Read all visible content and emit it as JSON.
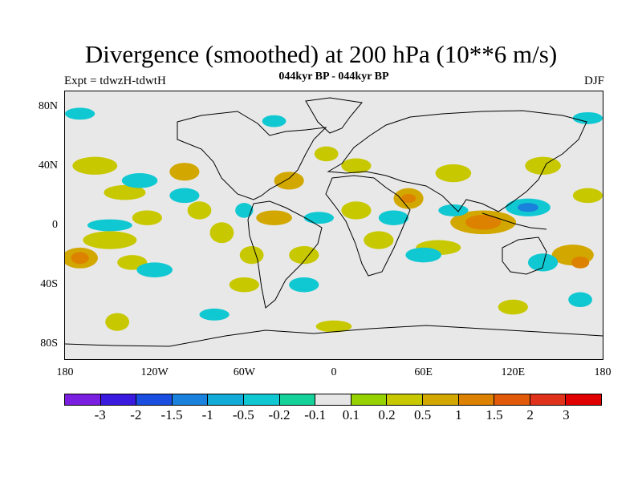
{
  "title": "Divergence (smoothed) at 200 hPa (10**6 m/s)",
  "subtitle_left": "Expt = tdwzH-tdwtH",
  "subtitle_center": "044kyr BP - 044kyr BP",
  "subtitle_right": "DJF",
  "map": {
    "projection": "cylindrical-equidistant",
    "lon_range": [
      -180,
      180
    ],
    "lat_range": [
      -90,
      90
    ],
    "background_color": "#e8e8e8",
    "coastline_color": "#000000",
    "lat_ticks": [
      {
        "value": 80,
        "label": "80N"
      },
      {
        "value": 40,
        "label": "40N"
      },
      {
        "value": 0,
        "label": "0"
      },
      {
        "value": -40,
        "label": "40S"
      },
      {
        "value": -80,
        "label": "80S"
      }
    ],
    "lon_ticks": [
      {
        "value": -180,
        "label": "180"
      },
      {
        "value": -120,
        "label": "120W"
      },
      {
        "value": -60,
        "label": "60W"
      },
      {
        "value": 0,
        "label": "0"
      },
      {
        "value": 60,
        "label": "60E"
      },
      {
        "value": 120,
        "label": "120E"
      },
      {
        "value": 180,
        "label": "180"
      }
    ],
    "field_blobs": [
      {
        "lon": -170,
        "lat": -22,
        "rlon": 12,
        "rlat": 7,
        "level": 0.6
      },
      {
        "lon": -170,
        "lat": -22,
        "rlon": 6,
        "rlat": 4,
        "level": 1.1
      },
      {
        "lon": -150,
        "lat": -10,
        "rlon": 18,
        "rlat": 6,
        "level": 0.3
      },
      {
        "lon": -135,
        "lat": -25,
        "rlon": 10,
        "rlat": 5,
        "level": 0.4
      },
      {
        "lon": -160,
        "lat": 40,
        "rlon": 15,
        "rlat": 6,
        "level": 0.3
      },
      {
        "lon": -140,
        "lat": 22,
        "rlon": 14,
        "rlat": 5,
        "level": 0.4
      },
      {
        "lon": -125,
        "lat": 5,
        "rlon": 10,
        "rlat": 5,
        "level": 0.3
      },
      {
        "lon": -100,
        "lat": 36,
        "rlon": 10,
        "rlat": 6,
        "level": 0.5
      },
      {
        "lon": -90,
        "lat": 10,
        "rlon": 8,
        "rlat": 6,
        "level": 0.3
      },
      {
        "lon": -75,
        "lat": -5,
        "rlon": 8,
        "rlat": 7,
        "level": 0.3
      },
      {
        "lon": -55,
        "lat": -20,
        "rlon": 8,
        "rlat": 6,
        "level": 0.2
      },
      {
        "lon": -40,
        "lat": 5,
        "rlon": 12,
        "rlat": 5,
        "level": 0.5
      },
      {
        "lon": -40,
        "lat": 5,
        "rlon": 5,
        "rlat": 3,
        "level": 0.9
      },
      {
        "lon": -60,
        "lat": -40,
        "rlon": 10,
        "rlat": 5,
        "level": 0.3
      },
      {
        "lon": -20,
        "lat": -20,
        "rlon": 10,
        "rlat": 6,
        "level": 0.3
      },
      {
        "lon": -30,
        "lat": 30,
        "rlon": 10,
        "rlat": 6,
        "level": 0.5
      },
      {
        "lon": -5,
        "lat": 48,
        "rlon": 8,
        "rlat": 5,
        "level": 0.3
      },
      {
        "lon": 15,
        "lat": 40,
        "rlon": 10,
        "rlat": 5,
        "level": 0.4
      },
      {
        "lon": 15,
        "lat": 10,
        "rlon": 10,
        "rlat": 6,
        "level": 0.3
      },
      {
        "lon": 30,
        "lat": -10,
        "rlon": 10,
        "rlat": 6,
        "level": 0.4
      },
      {
        "lon": 50,
        "lat": 18,
        "rlon": 10,
        "rlat": 7,
        "level": 0.6
      },
      {
        "lon": 50,
        "lat": 18,
        "rlon": 5,
        "rlat": 3,
        "level": 1.2
      },
      {
        "lon": 80,
        "lat": 35,
        "rlon": 12,
        "rlat": 6,
        "level": 0.3
      },
      {
        "lon": 70,
        "lat": -15,
        "rlon": 15,
        "rlat": 5,
        "level": 0.3
      },
      {
        "lon": 100,
        "lat": 2,
        "rlon": 22,
        "rlat": 8,
        "level": 0.6
      },
      {
        "lon": 100,
        "lat": 2,
        "rlon": 12,
        "rlat": 5,
        "level": 1.2
      },
      {
        "lon": 160,
        "lat": -20,
        "rlon": 14,
        "rlat": 7,
        "level": 0.6
      },
      {
        "lon": 165,
        "lat": -25,
        "rlon": 6,
        "rlat": 4,
        "level": 1.1
      },
      {
        "lon": 140,
        "lat": 40,
        "rlon": 12,
        "rlat": 6,
        "level": 0.3
      },
      {
        "lon": 170,
        "lat": 20,
        "rlon": 10,
        "rlat": 5,
        "level": 0.3
      },
      {
        "lon": -145,
        "lat": -65,
        "rlon": 8,
        "rlat": 6,
        "level": 0.3
      },
      {
        "lon": 0,
        "lat": -68,
        "rlon": 12,
        "rlat": 4,
        "level": 0.3
      },
      {
        "lon": 120,
        "lat": -55,
        "rlon": 10,
        "rlat": 5,
        "level": 0.3
      },
      {
        "lon": -150,
        "lat": 0,
        "rlon": 15,
        "rlat": 4,
        "level": -0.3
      },
      {
        "lon": -130,
        "lat": 30,
        "rlon": 12,
        "rlat": 5,
        "level": -0.3
      },
      {
        "lon": -100,
        "lat": 20,
        "rlon": 10,
        "rlat": 5,
        "level": -0.3
      },
      {
        "lon": -120,
        "lat": -30,
        "rlon": 12,
        "rlat": 5,
        "level": -0.4
      },
      {
        "lon": -60,
        "lat": 10,
        "rlon": 6,
        "rlat": 5,
        "level": -0.3
      },
      {
        "lon": -10,
        "lat": 5,
        "rlon": 10,
        "rlat": 4,
        "level": -0.3
      },
      {
        "lon": -20,
        "lat": -40,
        "rlon": 10,
        "rlat": 5,
        "level": -0.3
      },
      {
        "lon": 40,
        "lat": 5,
        "rlon": 10,
        "rlat": 5,
        "level": -0.4
      },
      {
        "lon": 60,
        "lat": -20,
        "rlon": 12,
        "rlat": 5,
        "level": -0.3
      },
      {
        "lon": 80,
        "lat": 10,
        "rlon": 10,
        "rlat": 4,
        "level": -0.3
      },
      {
        "lon": 130,
        "lat": 12,
        "rlon": 15,
        "rlat": 6,
        "level": -0.5
      },
      {
        "lon": 130,
        "lat": 12,
        "rlon": 7,
        "rlat": 3,
        "level": -1.2
      },
      {
        "lon": 140,
        "lat": -25,
        "rlon": 10,
        "rlat": 6,
        "level": -0.4
      },
      {
        "lon": -170,
        "lat": 75,
        "rlon": 10,
        "rlat": 4,
        "level": -0.3
      },
      {
        "lon": 170,
        "lat": 72,
        "rlon": 10,
        "rlat": 4,
        "level": -0.3
      },
      {
        "lon": -40,
        "lat": 70,
        "rlon": 8,
        "rlat": 4,
        "level": -0.3
      },
      {
        "lon": -80,
        "lat": -60,
        "rlon": 10,
        "rlat": 4,
        "level": -0.3
      },
      {
        "lon": 165,
        "lat": -50,
        "rlon": 8,
        "rlat": 5,
        "level": -0.3
      }
    ]
  },
  "colorbar": {
    "colors": [
      "#7a1ee0",
      "#3b1ae0",
      "#1a4ee0",
      "#1a82dc",
      "#12aad6",
      "#10c8d2",
      "#14d29a",
      "#e6e6e6",
      "#96d200",
      "#c8c800",
      "#d2a800",
      "#dc8200",
      "#e05a0a",
      "#e0321a",
      "#e00000"
    ],
    "labels": [
      "-3",
      "-2",
      "-1.5",
      "-1",
      "-0.5",
      "-0.2",
      "-0.1",
      "0.1",
      "0.2",
      "0.5",
      "1",
      "1.5",
      "2",
      "3"
    ],
    "thresholds": [
      -3,
      -2,
      -1.5,
      -1,
      -0.5,
      -0.2,
      -0.1,
      0.1,
      0.2,
      0.5,
      1,
      1.5,
      2,
      3
    ]
  }
}
